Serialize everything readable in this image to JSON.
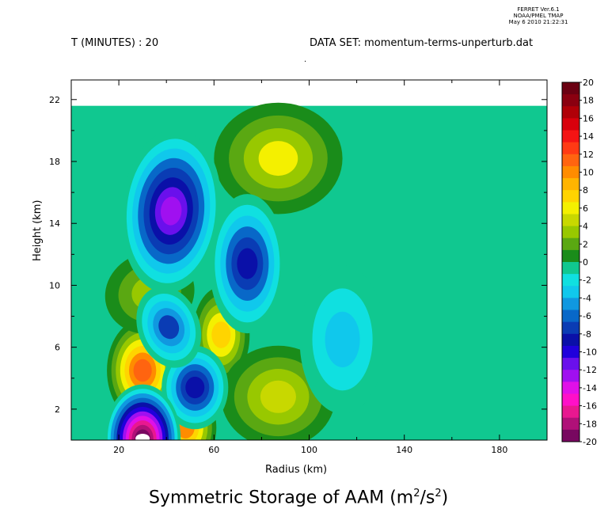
{
  "header": {
    "software": [
      "FERRET Ver.6.1",
      "NOAA/PMEL TMAP",
      "May 6 2010 21:22:31"
    ],
    "time_label": "T (MINUTES) : 20",
    "dataset_label": "DATA SET: momentum-terms-unperturb.dat",
    "dot": "."
  },
  "chart_data": {
    "type": "heatmap",
    "subtype": "filled-contour",
    "title_main": "Symmetric Storage of AAM (m",
    "title_sup1": "2",
    "title_mid": "/s",
    "title_sup2": "2",
    "title_end": ")",
    "xlabel": "Radius (km)",
    "ylabel": "Height (km)",
    "xlim": [
      0,
      200
    ],
    "ylim": [
      0,
      22.5
    ],
    "x_ticks": [
      20,
      60,
      100,
      140,
      180
    ],
    "y_ticks": [
      2,
      6,
      10,
      14,
      18,
      22
    ],
    "colorbar": {
      "levels": [
        20,
        18,
        16,
        14,
        12,
        10,
        8,
        6,
        4,
        2,
        0,
        -2,
        -4,
        -6,
        -8,
        -10,
        -12,
        -14,
        -16,
        -18,
        -20
      ],
      "colors": [
        "#6b0012",
        "#8a0010",
        "#b00008",
        "#d8000c",
        "#f41414",
        "#ff3a14",
        "#ff6410",
        "#ff8c00",
        "#ffb400",
        "#ffd400",
        "#f4f000",
        "#c8d800",
        "#98c800",
        "#5aa812",
        "#1a8c1a",
        "#10c890",
        "#10e0e0",
        "#10c8ec",
        "#1098e0",
        "#0868c8",
        "#0a3cb4",
        "#0a10a8",
        "#2000dc",
        "#6a10ec",
        "#a010f0",
        "#e010e8",
        "#ff10c8",
        "#e81890",
        "#b01078",
        "#780860"
      ]
    },
    "features": [
      {
        "r": 30,
        "z": 4.5,
        "value": 12,
        "sign": "positive"
      },
      {
        "r": 48,
        "z": 0.8,
        "value": 10,
        "sign": "positive"
      },
      {
        "r": 63,
        "z": 6.8,
        "value": 8,
        "sign": "positive"
      },
      {
        "r": 87,
        "z": 18.2,
        "value": 6,
        "sign": "positive"
      },
      {
        "r": 87,
        "z": 2.8,
        "value": 5,
        "sign": "positive"
      },
      {
        "r": 33,
        "z": 9.5,
        "value": 3,
        "sign": "positive"
      },
      {
        "r": 42,
        "z": 14.8,
        "value": -13,
        "sign": "negative"
      },
      {
        "r": 74,
        "z": 11.4,
        "value": -9,
        "sign": "negative"
      },
      {
        "r": 52,
        "z": 3.4,
        "value": -9,
        "sign": "negative"
      },
      {
        "r": 41,
        "z": 7.3,
        "value": -7,
        "sign": "negative"
      },
      {
        "r": 30,
        "z": 0.1,
        "value": -20,
        "sign": "negative"
      },
      {
        "r": 114,
        "z": 6.5,
        "value": -3,
        "sign": "negative"
      }
    ]
  }
}
